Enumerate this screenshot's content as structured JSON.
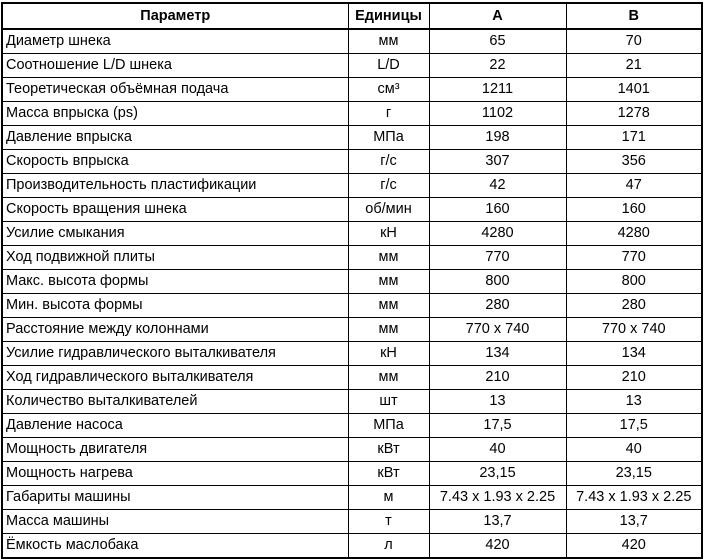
{
  "header": {
    "param": "Параметр",
    "units": "Единицы",
    "a": "A",
    "b": "B"
  },
  "rows": [
    {
      "param": "Диаметр шнека",
      "units": "мм",
      "a": "65",
      "b": "70"
    },
    {
      "param": "Соотношение L/D шнека",
      "units": "L/D",
      "a": "22",
      "b": "21"
    },
    {
      "param": "Теоретическая объёмная подача",
      "units": "см³",
      "a": "1211",
      "b": "1401"
    },
    {
      "param": "Масса впрыска (ps)",
      "units": "г",
      "a": "1102",
      "b": "1278"
    },
    {
      "param": "Давление впрыска",
      "units": "МПа",
      "a": "198",
      "b": "171"
    },
    {
      "param": "Скорость впрыска",
      "units": "г/с",
      "a": "307",
      "b": "356"
    },
    {
      "param": "Производительность пластификации",
      "units": "г/с",
      "a": "42",
      "b": "47"
    },
    {
      "param": "Скорость вращения шнека",
      "units": "об/мин",
      "a": "160",
      "b": "160"
    },
    {
      "param": "Усилие смыкания",
      "units": "кН",
      "a": "4280",
      "b": "4280"
    },
    {
      "param": "Ход подвижной плиты",
      "units": "мм",
      "a": "770",
      "b": "770"
    },
    {
      "param": "Макс. высота формы",
      "units": "мм",
      "a": "800",
      "b": "800"
    },
    {
      "param": "Мин. высота формы",
      "units": "мм",
      "a": "280",
      "b": "280"
    },
    {
      "param": "Расстояние между колоннами",
      "units": "мм",
      "a": "770 x 740",
      "b": "770 x 740"
    },
    {
      "param": "Усилие гидравлического выталкивателя",
      "units": "кН",
      "a": "134",
      "b": "134"
    },
    {
      "param": "Ход гидравлического выталкивателя",
      "units": "мм",
      "a": "210",
      "b": "210"
    },
    {
      "param": "Количество выталкивателей",
      "units": "шт",
      "a": "13",
      "b": "13"
    },
    {
      "param": "Давление насоса",
      "units": "МПа",
      "a": "17,5",
      "b": "17,5"
    },
    {
      "param": "Мощность двигателя",
      "units": "кВт",
      "a": "40",
      "b": "40"
    },
    {
      "param": "Мощность нагрева",
      "units": "кВт",
      "a": "23,15",
      "b": "23,15"
    },
    {
      "param": "Габариты машины",
      "units": "м",
      "a": "7.43 x 1.93 x 2.25",
      "b": "7.43 x 1.93 x 2.25"
    },
    {
      "param": "Масса машины",
      "units": "т",
      "a": "13,7",
      "b": "13,7"
    },
    {
      "param": "Ёмкость маслобака",
      "units": "л",
      "a": "420",
      "b": "420"
    }
  ]
}
